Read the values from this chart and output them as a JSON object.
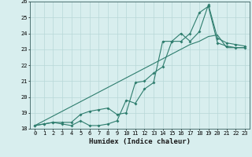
{
  "title": "",
  "xlabel": "Humidex (Indice chaleur)",
  "x_values": [
    0,
    1,
    2,
    3,
    4,
    5,
    6,
    7,
    8,
    9,
    10,
    11,
    12,
    13,
    14,
    15,
    16,
    17,
    18,
    19,
    20,
    21,
    22,
    23
  ],
  "line1": [
    18.2,
    18.3,
    18.4,
    18.3,
    18.2,
    18.5,
    18.2,
    18.2,
    18.3,
    18.5,
    19.8,
    19.6,
    20.5,
    20.9,
    23.5,
    23.5,
    23.5,
    24.0,
    25.3,
    25.7,
    23.4,
    23.2,
    23.1,
    23.1
  ],
  "line2": [
    18.2,
    18.3,
    18.4,
    18.4,
    18.4,
    18.9,
    19.1,
    19.2,
    19.3,
    18.9,
    19.0,
    20.9,
    21.0,
    21.5,
    21.9,
    23.5,
    24.0,
    23.5,
    24.1,
    25.8,
    23.7,
    23.4,
    23.3,
    23.2
  ],
  "line3": [
    18.2,
    18.5,
    18.8,
    19.1,
    19.4,
    19.7,
    20.0,
    20.3,
    20.6,
    20.9,
    21.2,
    21.5,
    21.8,
    22.1,
    22.4,
    22.7,
    23.0,
    23.3,
    23.5,
    23.8,
    23.9,
    23.1,
    23.1,
    23.1
  ],
  "line_color": "#2e7d6e",
  "bg_color": "#d8eeee",
  "grid_color": "#b8d8d8",
  "ylim": [
    18,
    26
  ],
  "yticks": [
    18,
    19,
    20,
    21,
    22,
    23,
    24,
    25,
    26
  ],
  "xlim": [
    -0.5,
    23.5
  ],
  "xticks": [
    0,
    1,
    2,
    3,
    4,
    5,
    6,
    7,
    8,
    9,
    10,
    11,
    12,
    13,
    14,
    15,
    16,
    17,
    18,
    19,
    20,
    21,
    22,
    23
  ]
}
